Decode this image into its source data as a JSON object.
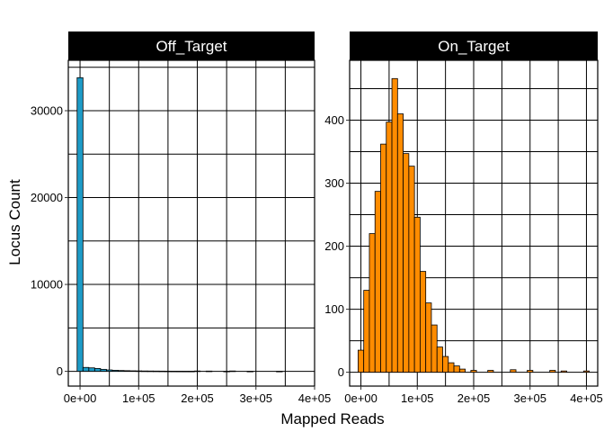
{
  "chart_data": {
    "type": "bar",
    "subtype": "faceted-histogram",
    "xlabel": "Mapped Reads",
    "ylabel": "Locus Count",
    "grid": true,
    "panel_border": true,
    "strip_background": "#000000",
    "strip_text_color": "#ffffff",
    "bar_outline": "#000000",
    "bin_width": 10000,
    "panels": [
      {
        "name": "Off_Target",
        "color": "#1d9bc7",
        "xlim": [
          -20000,
          400000
        ],
        "ylim": [
          -1700,
          35800
        ],
        "x_ticks": [
          0,
          100000,
          200000,
          300000,
          400000
        ],
        "x_tick_labels": [
          "0e+00",
          "1e+05",
          "2e+05",
          "3e+05",
          "4e+05"
        ],
        "y_ticks": [
          0,
          10000,
          20000,
          30000
        ],
        "y_tick_labels": [
          "0",
          "10000",
          "20000",
          "30000"
        ],
        "bins": [
          {
            "x": 0,
            "count": 33800
          },
          {
            "x": 10000,
            "count": 450
          },
          {
            "x": 20000,
            "count": 400
          },
          {
            "x": 30000,
            "count": 330
          },
          {
            "x": 40000,
            "count": 230
          },
          {
            "x": 50000,
            "count": 160
          },
          {
            "x": 60000,
            "count": 120
          },
          {
            "x": 70000,
            "count": 95
          },
          {
            "x": 80000,
            "count": 75
          },
          {
            "x": 90000,
            "count": 60
          },
          {
            "x": 100000,
            "count": 50
          },
          {
            "x": 110000,
            "count": 40
          },
          {
            "x": 120000,
            "count": 35
          },
          {
            "x": 130000,
            "count": 30
          },
          {
            "x": 140000,
            "count": 25
          },
          {
            "x": 150000,
            "count": 20
          },
          {
            "x": 160000,
            "count": 15
          },
          {
            "x": 170000,
            "count": 12
          },
          {
            "x": 180000,
            "count": 10
          },
          {
            "x": 190000,
            "count": 8
          },
          {
            "x": 200000,
            "count": 40
          },
          {
            "x": 220000,
            "count": 30
          },
          {
            "x": 250000,
            "count": 6
          },
          {
            "x": 260000,
            "count": 40
          },
          {
            "x": 290000,
            "count": 6
          },
          {
            "x": 340000,
            "count": 5
          }
        ]
      },
      {
        "name": "On_Target",
        "color": "#ff8c00",
        "xlim": [
          -20000,
          420000
        ],
        "ylim": [
          -22,
          495
        ],
        "x_ticks": [
          0,
          100000,
          200000,
          300000,
          400000
        ],
        "x_tick_labels": [
          "0e+00",
          "1e+05",
          "2e+05",
          "3e+05",
          "4e+05"
        ],
        "y_ticks": [
          0,
          100,
          200,
          300,
          400
        ],
        "y_tick_labels": [
          "0",
          "100",
          "200",
          "300",
          "400"
        ],
        "bins": [
          {
            "x": 0,
            "count": 35
          },
          {
            "x": 10000,
            "count": 130
          },
          {
            "x": 20000,
            "count": 220
          },
          {
            "x": 30000,
            "count": 287
          },
          {
            "x": 40000,
            "count": 362
          },
          {
            "x": 50000,
            "count": 397
          },
          {
            "x": 60000,
            "count": 466
          },
          {
            "x": 70000,
            "count": 410
          },
          {
            "x": 80000,
            "count": 347
          },
          {
            "x": 90000,
            "count": 327
          },
          {
            "x": 100000,
            "count": 246
          },
          {
            "x": 110000,
            "count": 160
          },
          {
            "x": 120000,
            "count": 110
          },
          {
            "x": 130000,
            "count": 75
          },
          {
            "x": 140000,
            "count": 40
          },
          {
            "x": 150000,
            "count": 25
          },
          {
            "x": 160000,
            "count": 15
          },
          {
            "x": 170000,
            "count": 10
          },
          {
            "x": 180000,
            "count": 5
          },
          {
            "x": 200000,
            "count": 3
          },
          {
            "x": 230000,
            "count": 3
          },
          {
            "x": 270000,
            "count": 4
          },
          {
            "x": 300000,
            "count": 3
          },
          {
            "x": 340000,
            "count": 3
          },
          {
            "x": 360000,
            "count": 2
          },
          {
            "x": 400000,
            "count": 2
          }
        ]
      }
    ]
  }
}
